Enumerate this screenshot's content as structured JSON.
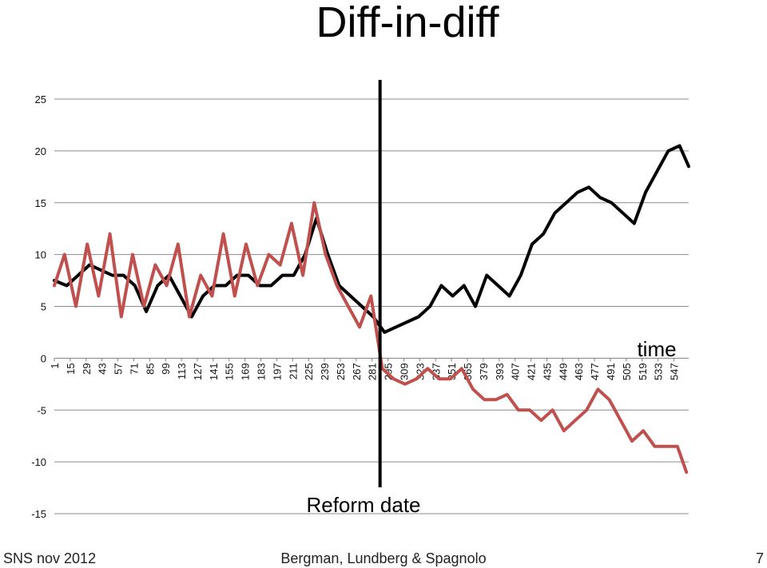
{
  "slide": {
    "title": "Diff-in-diff",
    "footer_left": "SNS nov 2012",
    "footer_center": "Bergman, Lundberg & Spagnolo",
    "page_number": "7"
  },
  "chart_data": {
    "type": "line",
    "title": "Diff-in-diff",
    "xlabel": "time",
    "ylabel": "",
    "ylim": [
      -15,
      25
    ],
    "yticks": [
      25,
      20,
      15,
      10,
      5,
      0,
      -5,
      -10,
      -15
    ],
    "xlim": [
      1,
      560
    ],
    "xticks": [
      "1",
      "15",
      "29",
      "43",
      "57",
      "71",
      "85",
      "99",
      "113",
      "127",
      "141",
      "155",
      "169",
      "183",
      "197",
      "211",
      "225",
      "239",
      "253",
      "267",
      "281",
      "295",
      "309",
      "323",
      "337",
      "351",
      "365",
      "379",
      "393",
      "407",
      "421",
      "435",
      "449",
      "463",
      "477",
      "491",
      "505",
      "519",
      "533",
      "547"
    ],
    "grid": true,
    "annotation": {
      "text": "Reform date",
      "x": 288
    },
    "series": [
      {
        "color": "#000000",
        "x": [
          1,
          12,
          22,
          32,
          42,
          52,
          62,
          72,
          82,
          92,
          102,
          112,
          122,
          132,
          142,
          152,
          162,
          172,
          182,
          192,
          202,
          212,
          222,
          232,
          242,
          252,
          262,
          272,
          282,
          292,
          302,
          312,
          322,
          332,
          342,
          352,
          362,
          372,
          382,
          392,
          402,
          412,
          422,
          432,
          442,
          452,
          462,
          472,
          482,
          492,
          502,
          512,
          522,
          532,
          542,
          552,
          560
        ],
        "values": [
          7.5,
          7,
          8,
          9,
          8.5,
          8,
          8,
          7,
          4.5,
          7,
          8,
          6,
          4,
          6,
          7,
          7,
          8,
          8,
          7,
          7,
          8,
          8,
          10,
          13.5,
          10,
          7,
          6,
          5,
          4,
          2.5,
          3,
          3.5,
          4,
          5,
          7,
          6,
          7,
          5,
          8,
          7,
          6,
          8,
          11,
          12,
          14,
          15,
          16,
          16.5,
          15.5,
          15,
          14,
          13,
          16,
          18,
          20,
          20.5,
          18.5
        ]
      },
      {
        "color": "#c0504d",
        "x": [
          1,
          10,
          20,
          30,
          40,
          50,
          60,
          70,
          80,
          90,
          100,
          110,
          120,
          130,
          140,
          150,
          160,
          170,
          180,
          190,
          200,
          210,
          220,
          230,
          240,
          250,
          260,
          270,
          280,
          290,
          300,
          310,
          320,
          330,
          340,
          350,
          360,
          370,
          380,
          390,
          400,
          410,
          420,
          430,
          440,
          450,
          460,
          470,
          480,
          490,
          500,
          510,
          520,
          530,
          540,
          550,
          558
        ],
        "values": [
          7,
          10,
          5,
          11,
          6,
          12,
          4,
          10,
          5,
          9,
          7,
          11,
          4,
          8,
          6,
          12,
          6,
          11,
          7,
          10,
          9,
          13,
          8,
          15,
          10,
          7,
          5,
          3,
          6,
          -1,
          -2,
          -2.5,
          -2,
          -1,
          -2,
          -2,
          -1,
          -3,
          -4,
          -4,
          -3.5,
          -5,
          -5,
          -6,
          -5,
          -7,
          -6,
          -5,
          -3,
          -4,
          -6,
          -8,
          -7,
          -8.5,
          -8.5,
          -8.5,
          -11
        ]
      }
    ]
  }
}
